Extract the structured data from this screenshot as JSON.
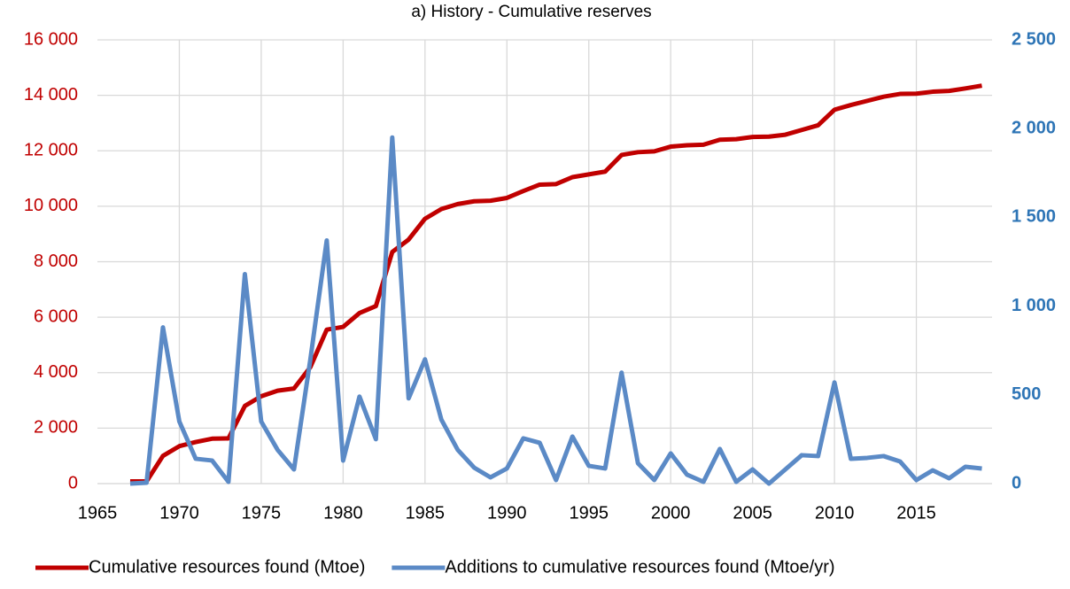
{
  "chart_data": {
    "type": "line",
    "title": "a) History - Cumulative reserves",
    "x": [
      1967,
      1968,
      1969,
      1970,
      1971,
      1972,
      1973,
      1974,
      1975,
      1976,
      1977,
      1978,
      1979,
      1980,
      1981,
      1982,
      1983,
      1984,
      1985,
      1986,
      1987,
      1988,
      1989,
      1990,
      1991,
      1992,
      1993,
      1994,
      1995,
      1996,
      1997,
      1998,
      1999,
      2000,
      2001,
      2002,
      2003,
      2004,
      2005,
      2006,
      2007,
      2008,
      2009,
      2010,
      2011,
      2012,
      2013,
      2014,
      2015,
      2016,
      2017,
      2018,
      2019
    ],
    "series": [
      {
        "name": "Cumulative resources found (Mtoe)",
        "color": "#c00000",
        "axis": "y",
        "values": [
          80,
          80,
          1000,
          1350,
          1500,
          1620,
          1630,
          2800,
          3150,
          3350,
          3430,
          4200,
          5550,
          5650,
          6150,
          6400,
          8350,
          8800,
          9550,
          9900,
          10080,
          10180,
          10200,
          10300,
          10550,
          10780,
          10800,
          11050,
          11150,
          11250,
          11850,
          11950,
          11980,
          12150,
          12200,
          12220,
          12400,
          12420,
          12500,
          12510,
          12580,
          12750,
          12920,
          13480,
          13650,
          13800,
          13950,
          14050,
          14060,
          14130,
          14160,
          14250,
          14350
        ]
      },
      {
        "name": "Additions to cumulative resources found (Mtoe/yr)",
        "color": "#5b8ac6",
        "axis": "y2",
        "values": [
          0,
          5,
          880,
          350,
          140,
          130,
          10,
          1180,
          350,
          190,
          80,
          700,
          1370,
          130,
          490,
          250,
          1950,
          480,
          700,
          360,
          190,
          90,
          35,
          85,
          255,
          230,
          20,
          265,
          100,
          85,
          625,
          115,
          20,
          170,
          50,
          10,
          195,
          10,
          80,
          0,
          80,
          160,
          155,
          570,
          140,
          145,
          155,
          125,
          20,
          75,
          30,
          95,
          85
        ]
      }
    ],
    "xlim": [
      1965,
      2020
    ],
    "xticks": [
      1965,
      1970,
      1975,
      1980,
      1985,
      1990,
      1995,
      2000,
      2005,
      2010,
      2015
    ],
    "ylim": [
      0,
      16000
    ],
    "yticks": [
      0,
      {
        "value": 2000,
        "label": "2 000"
      },
      {
        "value": 4000,
        "label": "4 000"
      },
      {
        "value": 6000,
        "label": "6 000"
      },
      {
        "value": 8000,
        "label": "8 000"
      },
      {
        "value": 10000,
        "label": "10 000"
      },
      {
        "value": 12000,
        "label": "12 000"
      },
      {
        "value": 14000,
        "label": "14 000"
      },
      {
        "value": 16000,
        "label": "16 000"
      }
    ],
    "y2lim": [
      0,
      2500
    ],
    "y2ticks": [
      0,
      500,
      {
        "value": 1000,
        "label": "1 000"
      },
      {
        "value": 1500,
        "label": "1 500"
      },
      {
        "value": 2000,
        "label": "2 000"
      },
      {
        "value": 2500,
        "label": "2 500"
      }
    ],
    "grid": true,
    "legend": "bottom"
  }
}
